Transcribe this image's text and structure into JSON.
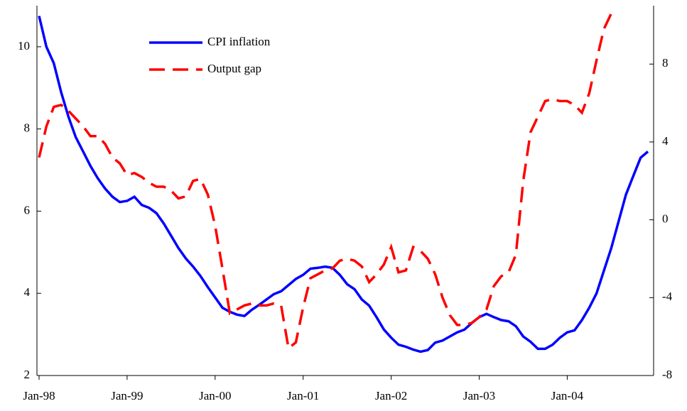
{
  "chart_data": {
    "type": "line",
    "categories": [
      "Jan-98",
      null,
      null,
      null,
      null,
      null,
      null,
      null,
      null,
      null,
      null,
      null,
      "Jan-99",
      null,
      null,
      null,
      null,
      null,
      null,
      null,
      null,
      null,
      null,
      null,
      "Jan-00",
      null,
      null,
      null,
      null,
      null,
      null,
      null,
      null,
      null,
      null,
      null,
      "Jan-01",
      null,
      null,
      null,
      null,
      null,
      null,
      null,
      null,
      null,
      null,
      null,
      "Jan-02",
      null,
      null,
      null,
      null,
      null,
      null,
      null,
      null,
      null,
      null,
      null,
      "Jan-03",
      null,
      null,
      null,
      null,
      null,
      null,
      null,
      null,
      null,
      null,
      null,
      "Jan-04",
      null,
      null,
      null,
      null,
      null,
      null,
      null,
      null,
      null,
      null,
      null
    ],
    "ylim": [
      2,
      11
    ],
    "yticks": [
      2,
      4,
      6,
      8,
      10
    ],
    "y2lim": [
      -8,
      11
    ],
    "y2ticks": [
      -8,
      -4,
      0,
      4,
      8
    ],
    "series": [
      {
        "name": "CPI inflation",
        "color": "#0000ff",
        "dash": false,
        "values": [
          10.75,
          10.0,
          9.6,
          8.9,
          8.3,
          7.8,
          7.45,
          7.1,
          6.8,
          6.55,
          6.35,
          6.22,
          6.25,
          6.35,
          6.15,
          6.08,
          5.95,
          5.7,
          5.4,
          5.1,
          4.85,
          4.65,
          4.42,
          4.15,
          3.9,
          3.65,
          3.55,
          3.48,
          3.45,
          3.6,
          3.72,
          3.85,
          3.98,
          4.05,
          4.2,
          4.35,
          4.45,
          4.6,
          4.62,
          4.65,
          4.62,
          4.45,
          4.22,
          4.1,
          3.85,
          3.7,
          3.42,
          3.12,
          2.92,
          2.75,
          2.7,
          2.63,
          2.58,
          2.62,
          2.8,
          2.85,
          2.95,
          3.05,
          3.12,
          3.28,
          3.42,
          3.5,
          3.42,
          3.35,
          3.32,
          3.2,
          2.95,
          2.82,
          2.65,
          2.65,
          2.75,
          2.92,
          3.05,
          3.1,
          3.35,
          3.65,
          4.0,
          4.55,
          5.1,
          5.75,
          6.4,
          6.85,
          7.3,
          7.45
        ]
      },
      {
        "name": "Output gap",
        "color": "#ff0000",
        "dash": true,
        "axis": "y2",
        "values": [
          3.2,
          4.8,
          5.8,
          5.9,
          5.6,
          5.2,
          4.8,
          4.3,
          4.3,
          3.9,
          3.2,
          2.9,
          2.3,
          2.4,
          2.2,
          1.9,
          1.7,
          1.7,
          1.5,
          1.1,
          1.2,
          2.0,
          2.1,
          1.3,
          -0.3,
          -2.5,
          -4.8,
          -4.6,
          -4.4,
          -4.3,
          -4.4,
          -4.4,
          -4.3,
          -4.4,
          -6.6,
          -6.3,
          -4.5,
          -3.0,
          -2.8,
          -2.6,
          -2.5,
          -2.1,
          -2.0,
          -2.1,
          -2.4,
          -3.2,
          -2.8,
          -2.3,
          -1.4,
          -2.7,
          -2.6,
          -1.4,
          -1.6,
          -2.0,
          -2.8,
          -4.0,
          -4.9,
          -5.4,
          -5.4,
          -5.3,
          -5.0,
          -4.6,
          -3.4,
          -2.9,
          -2.7,
          -1.8,
          2.0,
          4.5,
          5.3,
          6.1,
          6.2,
          6.1,
          6.1,
          5.9,
          5.5,
          6.5,
          8.2,
          9.8,
          10.6,
          null,
          null,
          null,
          null,
          null
        ]
      }
    ]
  }
}
